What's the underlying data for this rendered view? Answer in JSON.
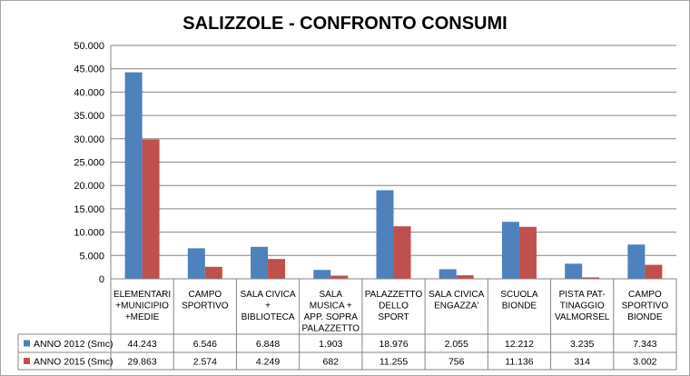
{
  "chart_data": {
    "type": "bar",
    "title": "SALIZZOLE - CONFRONTO CONSUMI",
    "categories": [
      [
        "ELEMENTARI",
        "+MUNICIPIO",
        "+MEDIE"
      ],
      [
        "CAMPO",
        "SPORTIVO"
      ],
      [
        "SALA CIVICA",
        "+",
        "BIBLIOTECA"
      ],
      [
        "SALA",
        "MUSICA +",
        "APP. SOPRA",
        "PALAZZETTO"
      ],
      [
        "PALAZZETTO",
        "DELLO",
        "SPORT"
      ],
      [
        "SALA CIVICA",
        "ENGAZZA'"
      ],
      [
        "SCUOLA",
        "BIONDE"
      ],
      [
        "PISTA PAT-",
        "TINAGGIO",
        "VALMORSEL"
      ],
      [
        "CAMPO",
        "SPORTIVO",
        "BIONDE"
      ]
    ],
    "series": [
      {
        "name": "ANNO 2012 (Smc)",
        "color": "#4f81bd",
        "values": [
          44243,
          6546,
          6848,
          1903,
          18976,
          2055,
          12212,
          3235,
          7343
        ],
        "labels": [
          "44.243",
          "6.546",
          "6.848",
          "1.903",
          "18.976",
          "2.055",
          "12.212",
          "3.235",
          "7.343"
        ]
      },
      {
        "name": "ANNO 2015 (Smc)",
        "color": "#c0504d",
        "values": [
          29863,
          2574,
          4249,
          682,
          11255,
          756,
          11136,
          314,
          3002
        ],
        "labels": [
          "29.863",
          "2.574",
          "4.249",
          "682",
          "11.255",
          "756",
          "11.136",
          "314",
          "3.002"
        ]
      }
    ],
    "ylim": [
      0,
      50000
    ],
    "yticks": [
      0,
      5000,
      10000,
      15000,
      20000,
      25000,
      30000,
      35000,
      40000,
      45000,
      50000
    ],
    "ytick_labels": [
      "0",
      "5.000",
      "10.000",
      "15.000",
      "20.000",
      "25.000",
      "30.000",
      "35.000",
      "40.000",
      "45.000",
      "50.000"
    ],
    "grid": true,
    "legend": "data table below chart"
  }
}
